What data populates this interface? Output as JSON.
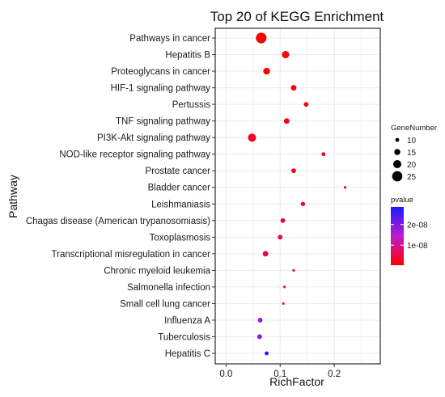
{
  "chart_data": {
    "type": "scatter",
    "title": "Top 20 of KEGG Enrichment",
    "xlabel": "RichFactor",
    "ylabel": "Pathway",
    "xlim": [
      -0.02,
      0.285
    ],
    "xticks": [
      0.0,
      0.1,
      0.2
    ],
    "xtick_labels": [
      "0.0",
      "0.1",
      "0.2"
    ],
    "grid": true,
    "points": [
      {
        "pathway": "Pathways in cancer",
        "rich_factor": 0.065,
        "gene_number": 26,
        "pvalue": 4e-10
      },
      {
        "pathway": "Hepatitis B",
        "rich_factor": 0.11,
        "gene_number": 18,
        "pvalue": 6e-10
      },
      {
        "pathway": "Proteoglycans in cancer",
        "rich_factor": 0.075,
        "gene_number": 17,
        "pvalue": 8e-10
      },
      {
        "pathway": "HIF-1 signaling pathway",
        "rich_factor": 0.125,
        "gene_number": 14,
        "pvalue": 1.2e-09
      },
      {
        "pathway": "Pertussis",
        "rich_factor": 0.148,
        "gene_number": 12,
        "pvalue": 1.5e-09
      },
      {
        "pathway": "TNF signaling pathway",
        "rich_factor": 0.112,
        "gene_number": 14,
        "pvalue": 2e-09
      },
      {
        "pathway": "PI3K-Akt signaling pathway",
        "rich_factor": 0.048,
        "gene_number": 20,
        "pvalue": 2.5e-09
      },
      {
        "pathway": "NOD-like receptor signaling pathway",
        "rich_factor": 0.18,
        "gene_number": 10,
        "pvalue": 2.5e-09
      },
      {
        "pathway": "Prostate cancer",
        "rich_factor": 0.125,
        "gene_number": 12,
        "pvalue": 2e-09
      },
      {
        "pathway": "Bladder cancer",
        "rich_factor": 0.22,
        "gene_number": 7,
        "pvalue": 2e-09
      },
      {
        "pathway": "Leishmaniasis",
        "rich_factor": 0.142,
        "gene_number": 11,
        "pvalue": 3e-09
      },
      {
        "pathway": "Chagas disease (American trypanosomiasis)",
        "rich_factor": 0.105,
        "gene_number": 12,
        "pvalue": 3.5e-09
      },
      {
        "pathway": "Toxoplasmosis",
        "rich_factor": 0.1,
        "gene_number": 12,
        "pvalue": 4e-09
      },
      {
        "pathway": "Transcriptional misregulation in cancer",
        "rich_factor": 0.073,
        "gene_number": 14,
        "pvalue": 5e-09
      },
      {
        "pathway": "Chronic myeloid leukemia",
        "rich_factor": 0.125,
        "gene_number": 7,
        "pvalue": 6e-09
      },
      {
        "pathway": "Salmonella infection",
        "rich_factor": 0.108,
        "gene_number": 7,
        "pvalue": 8e-09
      },
      {
        "pathway": "Small cell lung cancer",
        "rich_factor": 0.106,
        "gene_number": 7,
        "pvalue": 1e-08
      },
      {
        "pathway": "Influenza A",
        "rich_factor": 0.063,
        "gene_number": 12,
        "pvalue": 1.8e-08
      },
      {
        "pathway": "Tuberculosis",
        "rich_factor": 0.062,
        "gene_number": 12,
        "pvalue": 2e-08
      },
      {
        "pathway": "Hepatitis C",
        "rich_factor": 0.075,
        "gene_number": 10,
        "pvalue": 2.8e-08
      }
    ],
    "size_legend": {
      "title": "GeneNumber",
      "values": [
        10,
        15,
        20,
        25
      ]
    },
    "color_legend": {
      "title": "pvalue",
      "range": [
        3e-10,
        2.85e-08
      ],
      "ticks": [
        1e-08,
        2e-08
      ],
      "tick_labels": [
        "1e-08",
        "2e-08"
      ],
      "low_color": "#ff0000",
      "high_color": "#1a1aff"
    },
    "colors": {
      "panel_border": "#000000",
      "grid": "#ebebeb"
    }
  }
}
